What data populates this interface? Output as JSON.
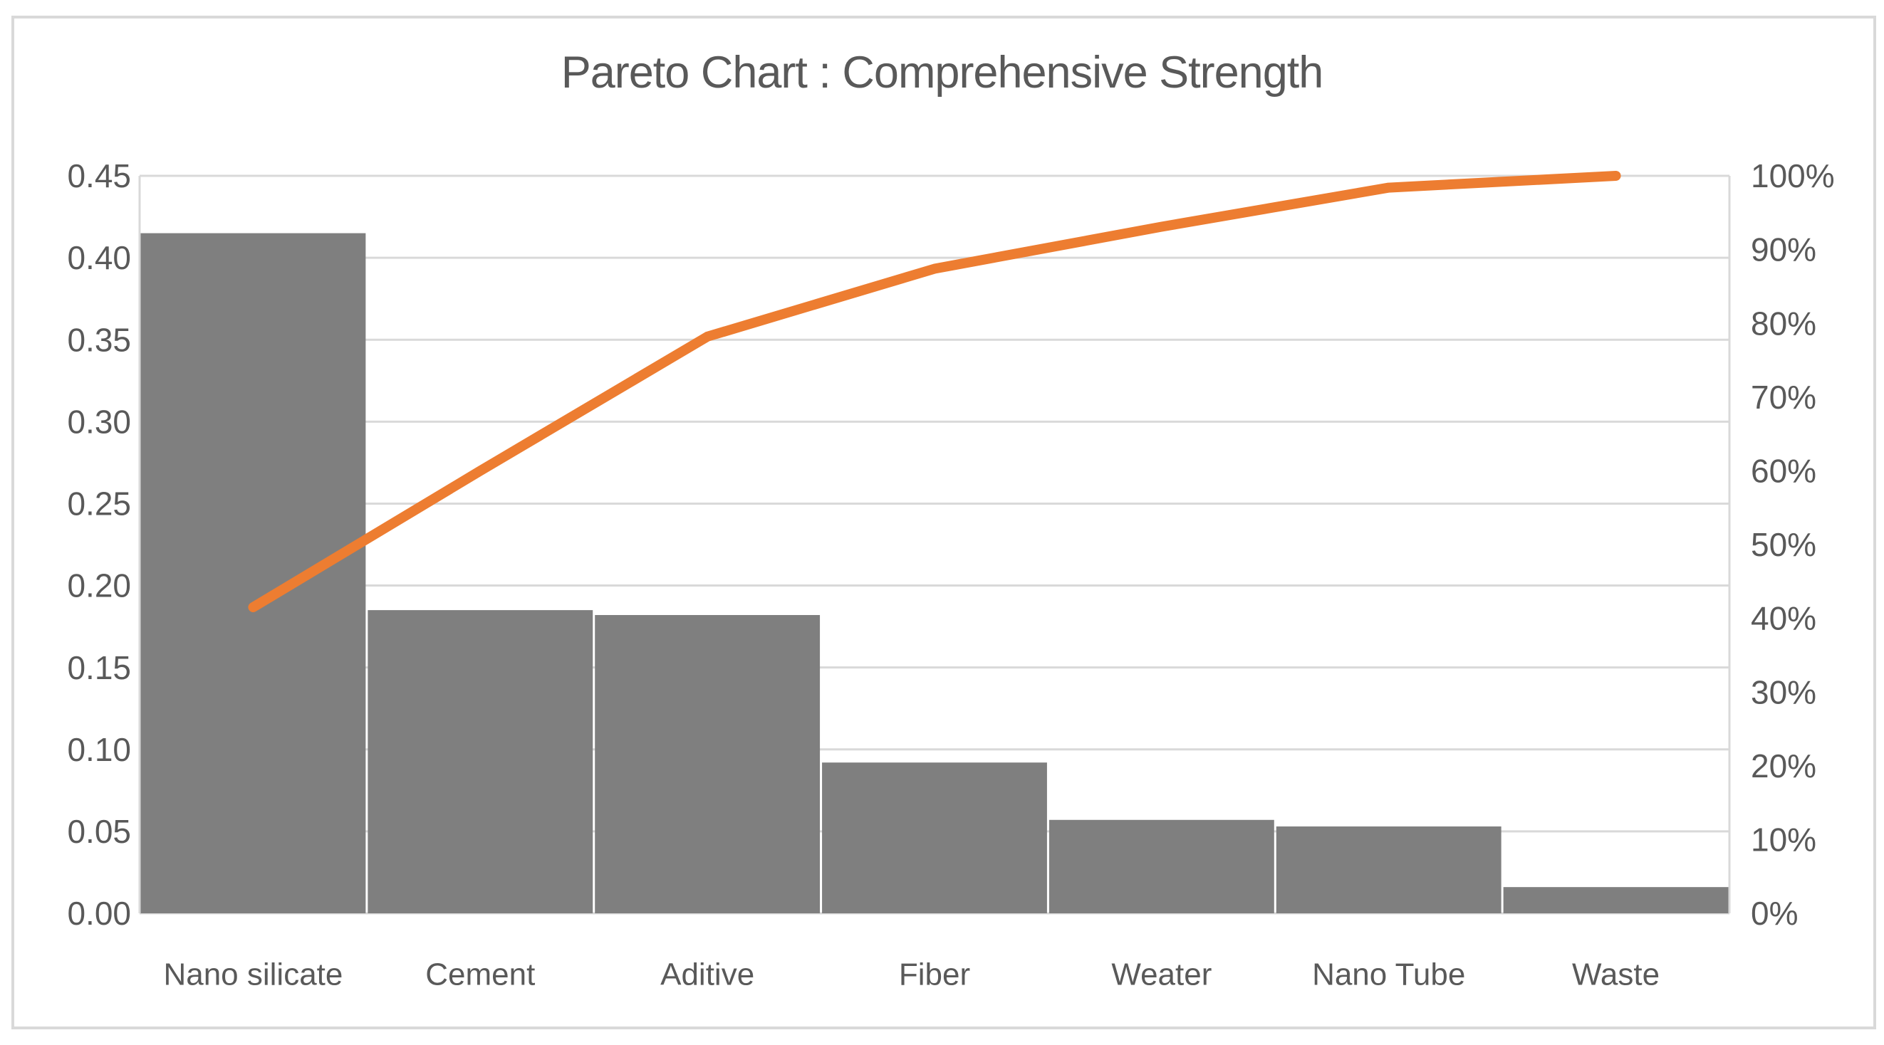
{
  "page": {
    "background": "#FFFFFF",
    "border_color": "#D9D9D9"
  },
  "chart_data": {
    "type": "bar",
    "subtype": "pareto (bars + cumulative percentage line)",
    "title": "Pareto Chart : Comprehensive Strength",
    "categories": [
      "Nano silicate",
      "Cement",
      "Aditive",
      "Fiber",
      "Weater",
      "Nano Tube",
      "Waste"
    ],
    "series": [
      {
        "name": "value-bars",
        "type": "bar",
        "axis": "left",
        "values": [
          0.415,
          0.185,
          0.182,
          0.092,
          0.057,
          0.053,
          0.016
        ],
        "color": "#7F7F7F"
      },
      {
        "name": "cumulative-percent-line",
        "type": "line",
        "axis": "right",
        "values_pct": [
          41.5,
          60.0,
          78.2,
          87.4,
          93.1,
          98.4,
          100.0
        ],
        "color": "#ED7D31"
      }
    ],
    "left_axis": {
      "min": 0.0,
      "max": 0.45,
      "step": 0.05,
      "tick_labels": [
        "0.00",
        "0.05",
        "0.10",
        "0.15",
        "0.20",
        "0.25",
        "0.30",
        "0.35",
        "0.40",
        "0.45"
      ]
    },
    "right_axis": {
      "min_pct": 0,
      "max_pct": 100,
      "step_pct": 10,
      "tick_labels": [
        "0%",
        "10%",
        "20%",
        "30%",
        "40%",
        "50%",
        "60%",
        "70%",
        "80%",
        "90%",
        "100%"
      ]
    },
    "grid": true,
    "legend": "none",
    "gridline_color": "#D9D9D9",
    "axis_line_color": "#D9D9D9",
    "text_color": "#595959",
    "plot_background": "#FFFFFF"
  }
}
